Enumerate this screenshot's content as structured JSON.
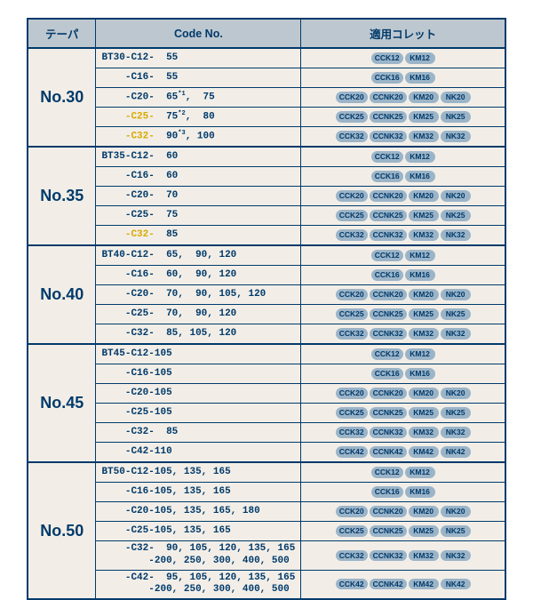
{
  "colors": {
    "border": "#003a6b",
    "header_bg": "#bdc7cf",
    "cell_bg": "#f2eee7",
    "pill_bg": "#9bb4c8",
    "highlight_text": "#d9a900",
    "text": "#003a6b"
  },
  "headers": {
    "taper": "テーパ",
    "code": "Code  No.",
    "collet": "適用コレット"
  },
  "groups": [
    {
      "taper": "No.30",
      "rows": [
        {
          "code": "BT30-C12-  55",
          "collets": [
            "CCK12",
            "KM12"
          ]
        },
        {
          "code": "    -C16-  55",
          "collets": [
            "CCK16",
            "KM16"
          ]
        },
        {
          "code": "    -C20-  65*1,  75",
          "sup": true,
          "collets": [
            "CCK20",
            "CCNK20",
            "KM20",
            "NK20"
          ]
        },
        {
          "code": "    -C25-  75*2,  80",
          "sup": true,
          "hl": "-C25-",
          "collets": [
            "CCK25",
            "CCNK25",
            "KM25",
            "NK25"
          ]
        },
        {
          "code": "    -C32-  90*3, 100",
          "sup": true,
          "hl": "-C32-",
          "collets": [
            "CCK32",
            "CCNK32",
            "KM32",
            "NK32"
          ]
        }
      ]
    },
    {
      "taper": "No.35",
      "rows": [
        {
          "code": "BT35-C12-  60",
          "collets": [
            "CCK12",
            "KM12"
          ]
        },
        {
          "code": "    -C16-  60",
          "collets": [
            "CCK16",
            "KM16"
          ]
        },
        {
          "code": "    -C20-  70",
          "collets": [
            "CCK20",
            "CCNK20",
            "KM20",
            "NK20"
          ]
        },
        {
          "code": "    -C25-  75",
          "collets": [
            "CCK25",
            "CCNK25",
            "KM25",
            "NK25"
          ]
        },
        {
          "code": "    -C32-  85",
          "hl": "-C32-",
          "collets": [
            "CCK32",
            "CCNK32",
            "KM32",
            "NK32"
          ]
        }
      ]
    },
    {
      "taper": "No.40",
      "rows": [
        {
          "code": "BT40-C12-  65,  90, 120",
          "collets": [
            "CCK12",
            "KM12"
          ]
        },
        {
          "code": "    -C16-  60,  90, 120",
          "collets": [
            "CCK16",
            "KM16"
          ]
        },
        {
          "code": "    -C20-  70,  90, 105, 120",
          "collets": [
            "CCK20",
            "CCNK20",
            "KM20",
            "NK20"
          ]
        },
        {
          "code": "    -C25-  70,  90, 120",
          "collets": [
            "CCK25",
            "CCNK25",
            "KM25",
            "NK25"
          ]
        },
        {
          "code": "    -C32-  85, 105, 120",
          "collets": [
            "CCK32",
            "CCNK32",
            "KM32",
            "NK32"
          ]
        }
      ]
    },
    {
      "taper": "No.45",
      "rows": [
        {
          "code": "BT45-C12-105",
          "collets": [
            "CCK12",
            "KM12"
          ]
        },
        {
          "code": "    -C16-105",
          "collets": [
            "CCK16",
            "KM16"
          ]
        },
        {
          "code": "    -C20-105",
          "collets": [
            "CCK20",
            "CCNK20",
            "KM20",
            "NK20"
          ]
        },
        {
          "code": "    -C25-105",
          "collets": [
            "CCK25",
            "CCNK25",
            "KM25",
            "NK25"
          ]
        },
        {
          "code": "    -C32-  85",
          "collets": [
            "CCK32",
            "CCNK32",
            "KM32",
            "NK32"
          ]
        },
        {
          "code": "    -C42-110",
          "collets": [
            "CCK42",
            "CCNK42",
            "KM42",
            "NK42"
          ]
        }
      ]
    },
    {
      "taper": "No.50",
      "rows": [
        {
          "code": "BT50-C12-105, 135, 165",
          "collets": [
            "CCK12",
            "KM12"
          ]
        },
        {
          "code": "    -C16-105, 135, 165",
          "collets": [
            "CCK16",
            "KM16"
          ]
        },
        {
          "code": "    -C20-105, 135, 165, 180",
          "collets": [
            "CCK20",
            "CCNK20",
            "KM20",
            "NK20"
          ]
        },
        {
          "code": "    -C25-105, 135, 165",
          "collets": [
            "CCK25",
            "CCNK25",
            "KM25",
            "NK25"
          ]
        },
        {
          "code": "    -C32-  90, 105, 120, 135, 165\n        -200, 250, 300, 400, 500",
          "collets": [
            "CCK32",
            "CCNK32",
            "KM32",
            "NK32"
          ]
        },
        {
          "code": "    -C42-  95, 105, 120, 135, 165\n        -200, 250, 300, 400, 500",
          "collets": [
            "CCK42",
            "CCNK42",
            "KM42",
            "NK42"
          ]
        }
      ]
    }
  ]
}
